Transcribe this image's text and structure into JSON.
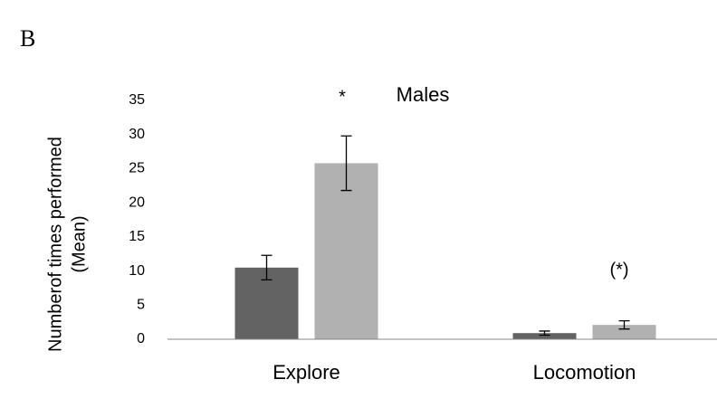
{
  "chart_data": {
    "type": "bar",
    "panel_label": "B",
    "title": "Males",
    "y_label": [
      "Numberof times performed",
      "(Mean)"
    ],
    "categories": [
      "Explore",
      "Locomotion"
    ],
    "series": [
      {
        "color": "#636363",
        "values": [
          10.5,
          0.9
        ],
        "errors": [
          1.8,
          0.3
        ]
      },
      {
        "color": "#b1b1b1",
        "values": [
          25.8,
          2.1
        ],
        "errors": [
          4,
          0.6
        ]
      }
    ],
    "annotations": [
      "*",
      "(*)"
    ],
    "ylim": [
      0,
      35
    ],
    "yticks": [
      0,
      5,
      10,
      15,
      20,
      25,
      30,
      35
    ],
    "grid": false
  }
}
